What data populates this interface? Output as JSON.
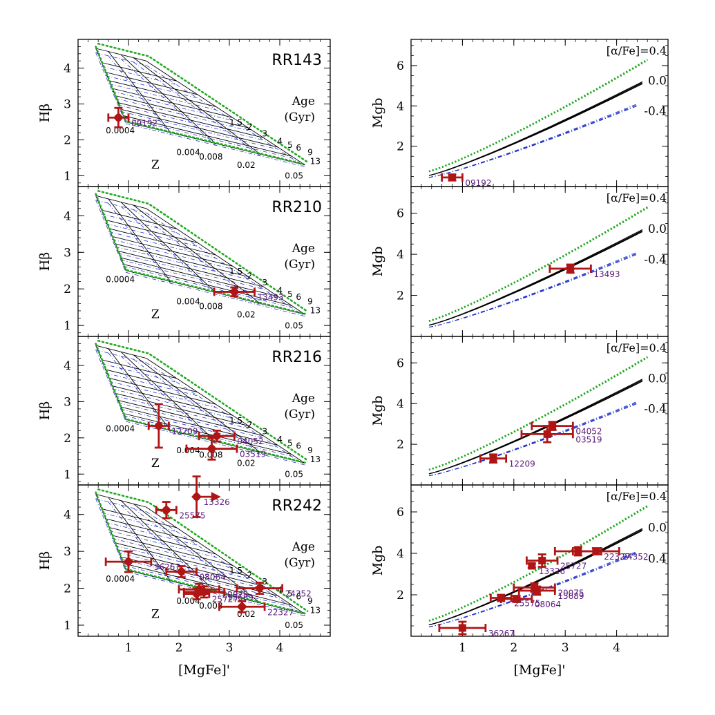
{
  "colors": {
    "frame": "#000000",
    "solar": "#000000",
    "alpha_enhanced": "#22aa22",
    "alpha_poor": "#2233cc",
    "points": "#b01515",
    "point_labels": "#5a1a7a"
  },
  "chart_data": [
    {
      "type": "scatter",
      "panel": "left",
      "title": "RR143",
      "xlabel": "[MgFe]'",
      "ylabel": "Hβ",
      "xlim": [
        0,
        5
      ],
      "ylim": [
        0.7,
        4.8
      ],
      "xticks": [
        "1",
        "2",
        "3",
        "4"
      ],
      "yticks": [
        "1",
        "2",
        "3",
        "4"
      ],
      "grid_labels": {
        "age_title": [
          "Age",
          "(Gyr)"
        ],
        "ages": [
          "1.5",
          "2",
          "3",
          "4",
          "5",
          "6",
          "9",
          "13"
        ],
        "z_title": "Z",
        "metallicities": [
          "0.0004",
          "0.004",
          "0.008",
          "0.02",
          "0.05"
        ]
      },
      "points": [
        {
          "id": "09192",
          "x": 0.8,
          "y": 2.62,
          "xerr": 0.2,
          "yerr": 0.27
        }
      ]
    },
    {
      "type": "scatter",
      "panel": "right",
      "xlabel": "[MgFe]'",
      "ylabel": "Mgb",
      "xlim": [
        0,
        5
      ],
      "ylim": [
        0,
        7.3
      ],
      "xticks": [
        "1",
        "2",
        "3",
        "4"
      ],
      "yticks": [
        "2",
        "4",
        "6"
      ],
      "model_labels": [
        "[α/Fe]=0.4",
        "0.0",
        "-0.4"
      ],
      "points": [
        {
          "id": "09192",
          "x": 0.8,
          "y": 0.45,
          "xerr": 0.2,
          "yerr": 0.15
        }
      ]
    },
    {
      "type": "scatter",
      "panel": "left",
      "title": "RR210",
      "xlabel": "[MgFe]'",
      "ylabel": "Hβ",
      "xlim": [
        0,
        5
      ],
      "ylim": [
        0.7,
        4.8
      ],
      "xticks": [
        "1",
        "2",
        "3",
        "4"
      ],
      "yticks": [
        "1",
        "2",
        "3",
        "4"
      ],
      "grid_labels": {
        "age_title": [
          "Age",
          "(Gyr)"
        ],
        "ages": [
          "1.5",
          "2",
          "3",
          "4",
          "5",
          "6",
          "9",
          "13"
        ],
        "z_title": "Z",
        "metallicities": [
          "0.0004",
          "0.004",
          "0.008",
          "0.02",
          "0.05"
        ]
      },
      "points": [
        {
          "id": "13493",
          "x": 3.1,
          "y": 1.92,
          "xerr": 0.4,
          "yerr": 0.12
        }
      ]
    },
    {
      "type": "scatter",
      "panel": "right",
      "xlabel": "[MgFe]'",
      "ylabel": "Mgb",
      "xlim": [
        0,
        5
      ],
      "ylim": [
        0,
        7.3
      ],
      "xticks": [
        "1",
        "2",
        "3",
        "4"
      ],
      "yticks": [
        "2",
        "4",
        "6"
      ],
      "model_labels": [
        "[α/Fe]=0.4",
        "0.0",
        "-0.4"
      ],
      "points": [
        {
          "id": "13493",
          "x": 3.1,
          "y": 3.3,
          "xerr": 0.4,
          "yerr": 0.2
        }
      ]
    },
    {
      "type": "scatter",
      "panel": "left",
      "title": "RR216",
      "xlabel": "[MgFe]'",
      "ylabel": "Hβ",
      "xlim": [
        0,
        5
      ],
      "ylim": [
        0.7,
        4.8
      ],
      "xticks": [
        "1",
        "2",
        "3",
        "4"
      ],
      "yticks": [
        "1",
        "2",
        "3",
        "4"
      ],
      "grid_labels": {
        "age_title": [
          "Age",
          "(Gyr)"
        ],
        "ages": [
          "1.5",
          "2",
          "3",
          "4",
          "5",
          "6",
          "9",
          "13"
        ],
        "z_title": "Z",
        "metallicities": [
          "0.0004",
          "0.004",
          "0.008",
          "0.02",
          "0.05"
        ]
      },
      "points": [
        {
          "id": "12209",
          "x": 1.6,
          "y": 2.33,
          "xerr": 0.2,
          "yerr": 0.6
        },
        {
          "id": "04052",
          "x": 2.75,
          "y": 2.05,
          "xerr": 0.35,
          "yerr": 0.15
        },
        {
          "id": "03519",
          "x": 2.65,
          "y": 1.7,
          "xerr": 0.5,
          "yerr": 0.3
        }
      ]
    },
    {
      "type": "scatter",
      "panel": "right",
      "xlabel": "[MgFe]'",
      "ylabel": "Mgb",
      "xlim": [
        0,
        5
      ],
      "ylim": [
        0,
        7.3
      ],
      "xticks": [
        "1",
        "2",
        "3",
        "4"
      ],
      "yticks": [
        "2",
        "4",
        "6"
      ],
      "model_labels": [
        "[α/Fe]=0.4",
        "0.0",
        "-0.4"
      ],
      "points": [
        {
          "id": "04052",
          "x": 2.75,
          "y": 2.9,
          "xerr": 0.4,
          "yerr": 0.2
        },
        {
          "id": "03519",
          "x": 2.65,
          "y": 2.5,
          "xerr": 0.5,
          "yerr": 0.4
        },
        {
          "id": "12209",
          "x": 1.6,
          "y": 1.3,
          "xerr": 0.25,
          "yerr": 0.2
        }
      ]
    },
    {
      "type": "scatter",
      "panel": "left",
      "title": "RR242",
      "xlabel": "[MgFe]'",
      "ylabel": "Hβ",
      "xlim": [
        0,
        5
      ],
      "ylim": [
        0.7,
        4.8
      ],
      "xticks": [
        "1",
        "2",
        "3",
        "4"
      ],
      "yticks": [
        "1",
        "2",
        "3",
        "4"
      ],
      "grid_labels": {
        "age_title": [
          "Age",
          "(Gyr)"
        ],
        "ages": [
          "1.5",
          "2",
          "3",
          "4",
          "5",
          "6",
          "9",
          "13"
        ],
        "z_title": "Z",
        "metallicities": [
          "0.0004",
          "0.004",
          "0.008",
          "0.02",
          "0.05"
        ]
      },
      "points": [
        {
          "id": "13326",
          "x": 2.35,
          "y": 4.48,
          "xerr": 0.0,
          "yerr": 0.55,
          "arrow_right": true
        },
        {
          "id": "25575",
          "x": 1.75,
          "y": 4.12,
          "xerr": 0.2,
          "yerr": 0.22
        },
        {
          "id": "36267",
          "x": 1.0,
          "y": 2.72,
          "xerr": 0.45,
          "yerr": 0.28
        },
        {
          "id": "08064",
          "x": 2.05,
          "y": 2.45,
          "xerr": 0.3,
          "yerr": 0.15
        },
        {
          "id": "20075",
          "x": 2.4,
          "y": 1.97,
          "xerr": 0.4,
          "yerr": 0.15
        },
        {
          "id": "15689",
          "x": 2.5,
          "y": 1.9,
          "xerr": 0.4,
          "yerr": 0.15
        },
        {
          "id": "25727",
          "x": 2.35,
          "y": 1.85,
          "xerr": 0.25,
          "yerr": 0.15
        },
        {
          "id": "24352",
          "x": 3.6,
          "y": 2.0,
          "xerr": 0.45,
          "yerr": 0.15
        },
        {
          "id": "22327",
          "x": 3.25,
          "y": 1.5,
          "xerr": 0.45,
          "yerr": 0.15
        }
      ]
    },
    {
      "type": "scatter",
      "panel": "right",
      "xlabel": "[MgFe]'",
      "ylabel": "Mgb",
      "xlim": [
        0,
        5
      ],
      "ylim": [
        0,
        7.3
      ],
      "xticks": [
        "1",
        "2",
        "3",
        "4"
      ],
      "yticks": [
        "2",
        "4",
        "6"
      ],
      "model_labels": [
        "[α/Fe]=0.4",
        "0.0",
        "-0.4"
      ],
      "points": [
        {
          "id": "22327",
          "x": 3.25,
          "y": 4.1,
          "xerr": 0.45,
          "yerr": 0.2
        },
        {
          "id": "24352",
          "x": 3.6,
          "y": 4.1,
          "xerr": 0.45,
          "yerr": 0.15
        },
        {
          "id": "25727",
          "x": 2.55,
          "y": 3.65,
          "xerr": 0.3,
          "yerr": 0.3
        },
        {
          "id": "13326",
          "x": 2.35,
          "y": 3.4,
          "xerr": 0.0,
          "yerr": 0.1
        },
        {
          "id": "20075",
          "x": 2.4,
          "y": 2.35,
          "xerr": 0.4,
          "yerr": 0.2
        },
        {
          "id": "15689",
          "x": 2.45,
          "y": 2.2,
          "xerr": 0.35,
          "yerr": 0.2
        },
        {
          "id": "25575",
          "x": 1.75,
          "y": 1.85,
          "xerr": 0.2,
          "yerr": 0.15
        },
        {
          "id": "08064",
          "x": 2.05,
          "y": 1.8,
          "xerr": 0.3,
          "yerr": 0.15
        },
        {
          "id": "36267",
          "x": 1.0,
          "y": 0.4,
          "xerr": 0.45,
          "yerr": 0.3
        }
      ]
    }
  ]
}
